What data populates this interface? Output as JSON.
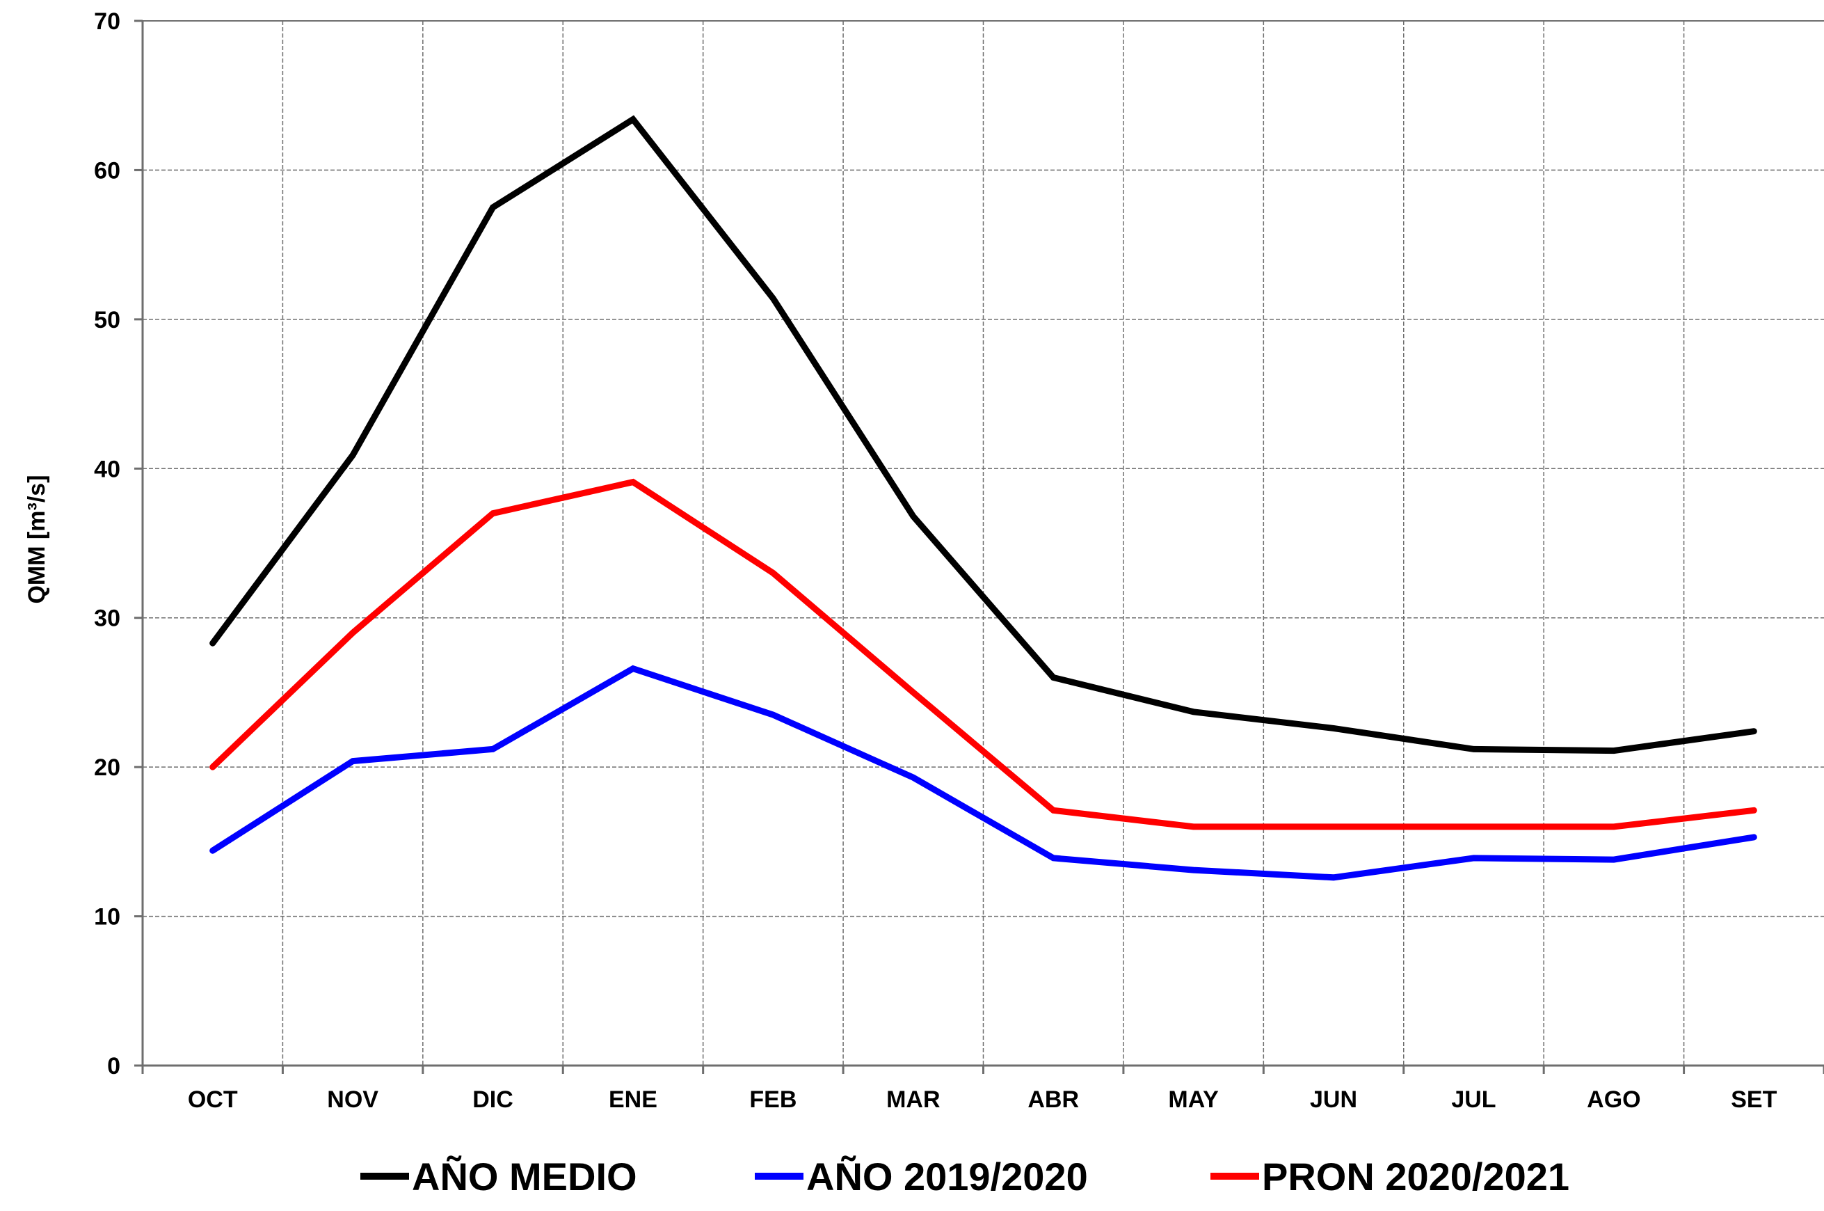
{
  "chart_data": {
    "type": "line",
    "title": "",
    "xlabel": "",
    "ylabel": "QMM [m³/s]",
    "ylim": [
      0,
      70
    ],
    "yticks": [
      0,
      10,
      20,
      30,
      40,
      50,
      60,
      70
    ],
    "grid": true,
    "legend_position": "bottom",
    "categories": [
      "OCT",
      "NOV",
      "DIC",
      "ENE",
      "FEB",
      "MAR",
      "ABR",
      "MAY",
      "JUN",
      "JUL",
      "AGO",
      "SET"
    ],
    "series": [
      {
        "name": "AÑO MEDIO",
        "color": "#000000",
        "values": [
          28.3,
          40.9,
          57.5,
          63.4,
          51.4,
          36.8,
          26.0,
          23.7,
          22.6,
          21.2,
          21.1,
          22.4
        ]
      },
      {
        "name": "AÑO 2019/2020",
        "color": "#0000ff",
        "values": [
          14.4,
          20.4,
          21.2,
          26.6,
          23.5,
          19.3,
          13.9,
          13.1,
          12.6,
          13.9,
          13.8,
          15.3
        ]
      },
      {
        "name": "PRON 2020/2021",
        "color": "#ff0000",
        "values": [
          20.0,
          29.0,
          37.0,
          39.1,
          33.0,
          25.0,
          17.1,
          16.0,
          16.0,
          16.0,
          16.0,
          17.1
        ]
      }
    ]
  }
}
